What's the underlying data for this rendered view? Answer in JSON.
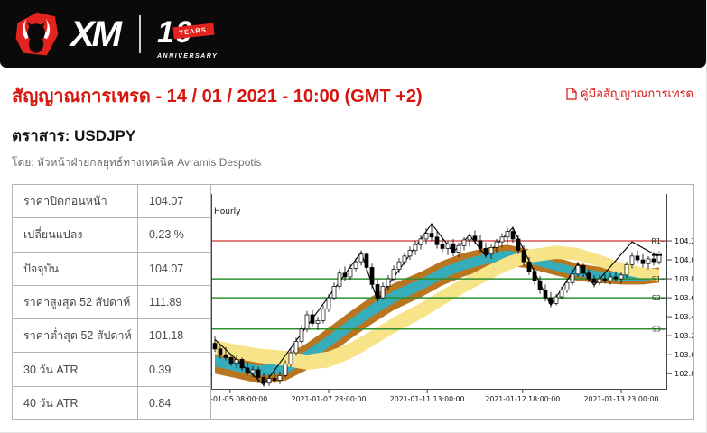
{
  "header": {
    "brand": "XM",
    "years_number": "10",
    "years_label": "YEARS",
    "anniversary_label": "ANNIVERSARY",
    "brand_red": "#e3231d"
  },
  "page": {
    "title": "สัญญาณการเทรด - 14 / 01 / 2021 - 10:00 (GMT +2)",
    "manual_link_label": "คู่มือสัญญาณการเทรด",
    "instrument_label": "ตราสาร: USDJPY",
    "byline": "โดย: หัวหน้าฝ่ายกลยุทธ์ทางเทคนิค Avramis Despotis",
    "accent_red": "#d6150f"
  },
  "stats": {
    "rows": [
      {
        "label": "ราคาปิดก่อนหน้า",
        "value": "104.07"
      },
      {
        "label": "เปลี่ยนแปลง",
        "value": "0.23 %"
      },
      {
        "label": "ปัจจุบัน",
        "value": "104.07"
      },
      {
        "label": "ราคาสูงสุด 52 สัปดาห์",
        "value": "111.89"
      },
      {
        "label": "ราคาต่ำสุด 52 สัปดาห์",
        "value": "101.18"
      },
      {
        "label": "30 วัน ATR",
        "value": "0.39"
      },
      {
        "label": "40 วัน ATR",
        "value": "0.84"
      }
    ]
  },
  "chart_data": {
    "type": "candlestick",
    "timeframe_label": "Hourly",
    "instrument": "USDJPY",
    "ylim": [
      102.64,
      104.695
    ],
    "y_ticks": [
      102.8,
      103.0,
      103.2,
      103.4,
      103.6,
      103.8,
      104.0,
      104.2
    ],
    "x_tick_labels": [
      "2021-01-05 08:00:00",
      "2021-01-07 23:00:00",
      "2021-01-11 13:00:00",
      "2021-01-12 18:00:00",
      "2021-01-13 23:00:00"
    ],
    "x_tick_positions": [
      2.8,
      21,
      39.2,
      56.8,
      75
    ],
    "levels": [
      {
        "name": "R1",
        "value": 104.2,
        "color": "#dd7f7b",
        "width": 2
      },
      {
        "name": "S1",
        "value": 103.8,
        "color": "#2f8f2e",
        "width": 1.5
      },
      {
        "name": "S2",
        "value": 103.6,
        "color": "#2f8f2e",
        "width": 1.5
      },
      {
        "name": "S3",
        "value": 103.27,
        "color": "#2f8f2e",
        "width": 1.5
      }
    ],
    "last_price": 104.07,
    "colors": {
      "candle_up": "#ffffff",
      "candle_down": "#000000",
      "candle_stroke": "#000000",
      "zigzag": "#000000",
      "band_brown": "#b9751f",
      "band_cyan": "#35adbb",
      "band_yellow": "#f8e488",
      "axis": "#444444",
      "tick_text": "#111111"
    },
    "candles": [
      [
        103.12,
        103.2,
        103.03,
        103.06
      ],
      [
        103.06,
        103.1,
        102.96,
        103.0
      ],
      [
        103.0,
        103.08,
        102.94,
        102.97
      ],
      [
        102.97,
        103.01,
        102.88,
        102.91
      ],
      [
        102.91,
        102.99,
        102.86,
        102.95
      ],
      [
        102.95,
        102.97,
        102.83,
        102.86
      ],
      [
        102.86,
        102.92,
        102.78,
        102.81
      ],
      [
        102.81,
        102.88,
        102.76,
        102.84
      ],
      [
        102.84,
        102.87,
        102.72,
        102.76
      ],
      [
        102.76,
        102.81,
        102.66,
        102.7
      ],
      [
        102.7,
        102.79,
        102.67,
        102.75
      ],
      [
        102.75,
        102.83,
        102.7,
        102.73
      ],
      [
        102.73,
        102.82,
        102.69,
        102.78
      ],
      [
        102.78,
        102.94,
        102.76,
        102.9
      ],
      [
        102.9,
        103.06,
        102.87,
        103.02
      ],
      [
        103.02,
        103.18,
        102.99,
        103.14
      ],
      [
        103.14,
        103.31,
        103.11,
        103.27
      ],
      [
        103.27,
        103.46,
        103.24,
        103.42
      ],
      [
        103.42,
        103.47,
        103.3,
        103.33
      ],
      [
        103.33,
        103.4,
        103.26,
        103.36
      ],
      [
        103.36,
        103.52,
        103.33,
        103.48
      ],
      [
        103.48,
        103.64,
        103.45,
        103.6
      ],
      [
        103.6,
        103.76,
        103.57,
        103.72
      ],
      [
        103.72,
        103.9,
        103.69,
        103.86
      ],
      [
        103.86,
        103.93,
        103.78,
        103.82
      ],
      [
        103.82,
        103.95,
        103.79,
        103.91
      ],
      [
        103.91,
        104.02,
        103.88,
        103.98
      ],
      [
        103.98,
        104.1,
        103.94,
        104.06
      ],
      [
        104.06,
        104.08,
        103.88,
        103.92
      ],
      [
        103.92,
        103.96,
        103.7,
        103.74
      ],
      [
        103.74,
        103.8,
        103.55,
        103.6
      ],
      [
        103.6,
        103.76,
        103.58,
        103.72
      ],
      [
        103.72,
        103.84,
        103.68,
        103.8
      ],
      [
        103.8,
        103.94,
        103.77,
        103.9
      ],
      [
        103.9,
        104.02,
        103.86,
        103.98
      ],
      [
        103.98,
        104.08,
        103.94,
        104.04
      ],
      [
        104.04,
        104.14,
        104.0,
        104.1
      ],
      [
        104.1,
        104.2,
        104.05,
        104.16
      ],
      [
        104.16,
        104.26,
        104.11,
        104.22
      ],
      [
        104.22,
        104.33,
        104.16,
        104.28
      ],
      [
        104.28,
        104.38,
        104.2,
        104.24
      ],
      [
        104.24,
        104.3,
        104.12,
        104.16
      ],
      [
        104.16,
        104.24,
        104.08,
        104.12
      ],
      [
        104.12,
        104.2,
        104.05,
        104.17
      ],
      [
        104.17,
        104.22,
        104.04,
        104.08
      ],
      [
        104.08,
        104.18,
        104.03,
        104.15
      ],
      [
        104.15,
        104.24,
        104.1,
        104.21
      ],
      [
        104.21,
        104.28,
        104.14,
        104.25
      ],
      [
        104.25,
        104.31,
        104.17,
        104.2
      ],
      [
        104.2,
        104.26,
        104.08,
        104.12
      ],
      [
        104.12,
        104.18,
        104.02,
        104.06
      ],
      [
        104.06,
        104.16,
        104.01,
        104.13
      ],
      [
        104.13,
        104.22,
        104.08,
        104.19
      ],
      [
        104.19,
        104.28,
        104.13,
        104.24
      ],
      [
        104.24,
        104.34,
        104.18,
        104.3
      ],
      [
        104.3,
        104.35,
        104.18,
        104.22
      ],
      [
        104.22,
        104.26,
        104.06,
        104.1
      ],
      [
        104.1,
        104.15,
        103.94,
        103.98
      ],
      [
        103.98,
        104.03,
        103.84,
        103.88
      ],
      [
        103.88,
        103.92,
        103.74,
        103.78
      ],
      [
        103.78,
        103.83,
        103.64,
        103.68
      ],
      [
        103.68,
        103.74,
        103.56,
        103.6
      ],
      [
        103.6,
        103.66,
        103.5,
        103.54
      ],
      [
        103.54,
        103.64,
        103.52,
        103.61
      ],
      [
        103.61,
        103.72,
        103.58,
        103.68
      ],
      [
        103.68,
        103.8,
        103.65,
        103.76
      ],
      [
        103.76,
        103.89,
        103.73,
        103.85
      ],
      [
        103.85,
        103.98,
        103.82,
        103.94
      ],
      [
        103.94,
        103.96,
        103.82,
        103.86
      ],
      [
        103.86,
        103.9,
        103.76,
        103.8
      ],
      [
        103.8,
        103.84,
        103.71,
        103.76
      ],
      [
        103.76,
        103.84,
        103.73,
        103.8
      ],
      [
        103.8,
        103.85,
        103.75,
        103.78
      ],
      [
        103.78,
        103.86,
        103.74,
        103.82
      ],
      [
        103.82,
        103.88,
        103.77,
        103.8
      ],
      [
        103.8,
        103.87,
        103.75,
        103.84
      ],
      [
        103.84,
        103.98,
        103.81,
        103.95
      ],
      [
        103.95,
        104.08,
        103.91,
        104.04
      ],
      [
        104.04,
        104.1,
        103.96,
        104.0
      ],
      [
        104.0,
        104.06,
        103.92,
        103.96
      ],
      [
        103.96,
        104.04,
        103.9,
        104.01
      ],
      [
        104.01,
        104.08,
        103.94,
        103.98
      ],
      [
        103.98,
        104.09,
        103.95,
        104.07
      ]
    ],
    "zigzag": [
      [
        0,
        103.16
      ],
      [
        9,
        102.68
      ],
      [
        27,
        104.08
      ],
      [
        30,
        103.57
      ],
      [
        40,
        104.38
      ],
      [
        44,
        104.08
      ],
      [
        47,
        104.26
      ],
      [
        50,
        104.04
      ],
      [
        55,
        104.34
      ],
      [
        62,
        103.52
      ],
      [
        67,
        103.96
      ],
      [
        70,
        103.73
      ],
      [
        77,
        104.19
      ],
      [
        82,
        104.03
      ]
    ],
    "bands": {
      "ribbon_points": [
        [
          0,
          102.93,
          0.13,
          0.055
        ],
        [
          4,
          102.88,
          0.13,
          0.055
        ],
        [
          8,
          102.83,
          0.13,
          0.055
        ],
        [
          13,
          102.86,
          0.135,
          0.06
        ],
        [
          17,
          102.98,
          0.14,
          0.065
        ],
        [
          21,
          103.14,
          0.145,
          0.065
        ],
        [
          25,
          103.31,
          0.145,
          0.065
        ],
        [
          29,
          103.47,
          0.145,
          0.065
        ],
        [
          33,
          103.61,
          0.14,
          0.065
        ],
        [
          38,
          103.74,
          0.135,
          0.06
        ],
        [
          42,
          103.86,
          0.13,
          0.06
        ],
        [
          46,
          103.95,
          0.125,
          0.055
        ],
        [
          50,
          104.01,
          0.115,
          0.055
        ],
        [
          54,
          104.05,
          0.11,
          0.05
        ],
        [
          58,
          104.01,
          0.1,
          0.05
        ],
        [
          63,
          103.93,
          0.095,
          0.045
        ],
        [
          67,
          103.87,
          0.09,
          0.045
        ],
        [
          71,
          103.84,
          0.085,
          0.04
        ],
        [
          75,
          103.82,
          0.08,
          0.04
        ],
        [
          79,
          103.82,
          0.08,
          0.04
        ],
        [
          82,
          103.84,
          0.08,
          0.04
        ]
      ],
      "yellow_points": [
        [
          0,
          103.08,
          0.075
        ],
        [
          4,
          103.03,
          0.075
        ],
        [
          8,
          102.99,
          0.075
        ],
        [
          13,
          102.96,
          0.08
        ],
        [
          17,
          102.92,
          0.08
        ],
        [
          21,
          102.95,
          0.085
        ],
        [
          25,
          103.04,
          0.085
        ],
        [
          29,
          103.17,
          0.085
        ],
        [
          33,
          103.31,
          0.085
        ],
        [
          38,
          103.46,
          0.085
        ],
        [
          42,
          103.6,
          0.085
        ],
        [
          46,
          103.73,
          0.08
        ],
        [
          50,
          103.85,
          0.08
        ],
        [
          54,
          103.96,
          0.075
        ],
        [
          58,
          104.04,
          0.07
        ],
        [
          63,
          104.08,
          0.07
        ],
        [
          67,
          104.06,
          0.065
        ],
        [
          71,
          103.99,
          0.065
        ],
        [
          75,
          103.91,
          0.06
        ],
        [
          79,
          103.86,
          0.06
        ],
        [
          82,
          103.84,
          0.06
        ]
      ]
    }
  }
}
